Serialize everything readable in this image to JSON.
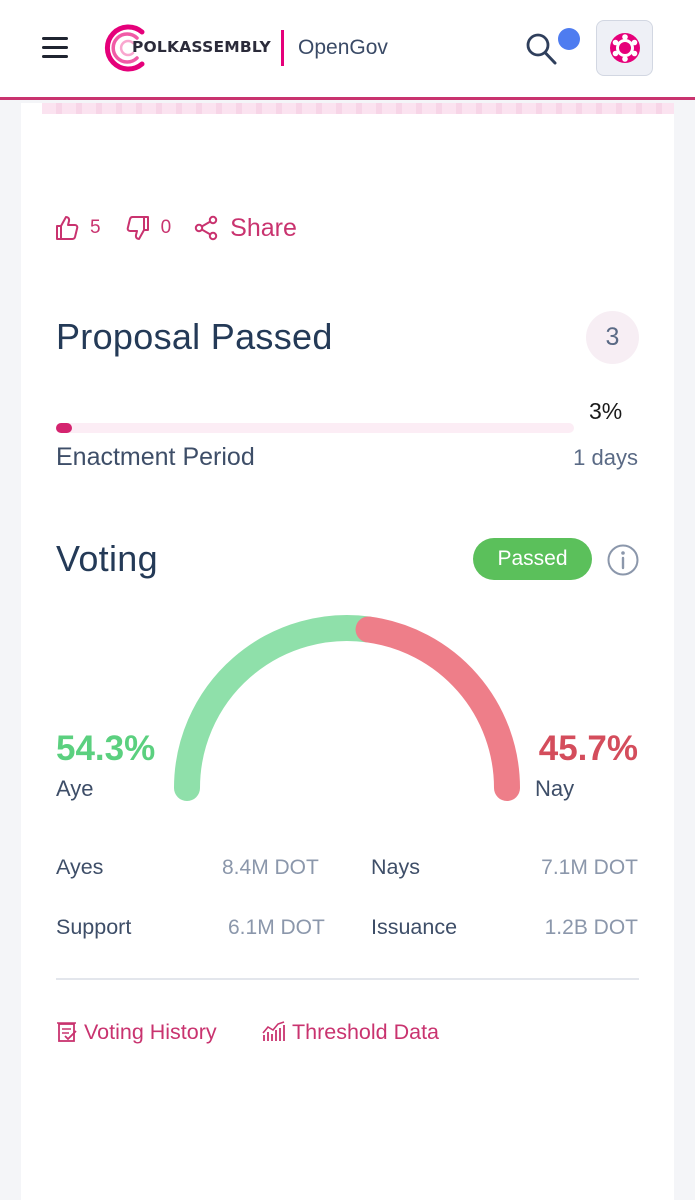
{
  "header": {
    "brand": "POLKASSEMBLY",
    "sub_brand": "OpenGov",
    "colors": {
      "accent": "#e5007a",
      "border": "#c9336f",
      "notification": "#4e7cf0"
    }
  },
  "reactions": {
    "likes": "5",
    "dislikes": "0",
    "share_label": "Share"
  },
  "proposal_status": {
    "title": "Proposal Passed",
    "count": "3",
    "progress_percent_label": "3%",
    "progress_value": 0.03,
    "period_label": "Enactment Period",
    "period_days": "1 days"
  },
  "voting": {
    "title": "Voting",
    "status_badge": "Passed",
    "aye_percent": "54.3%",
    "aye_label": "Aye",
    "nay_percent": "45.7%",
    "nay_label": "Nay",
    "aye_fraction": 0.543,
    "colors": {
      "aye": "#8fe0aa",
      "nay": "#ee7e89",
      "badge": "#5bc05b"
    },
    "stats": {
      "ayes_label": "Ayes",
      "ayes_value": "8.4M DOT",
      "nays_label": "Nays",
      "nays_value": "7.1M DOT",
      "support_label": "Support",
      "support_value": "6.1M DOT",
      "issuance_label": "Issuance",
      "issuance_value": "1.2B DOT"
    }
  },
  "links": {
    "voting_history": "Voting History",
    "threshold_data": "Threshold Data"
  }
}
